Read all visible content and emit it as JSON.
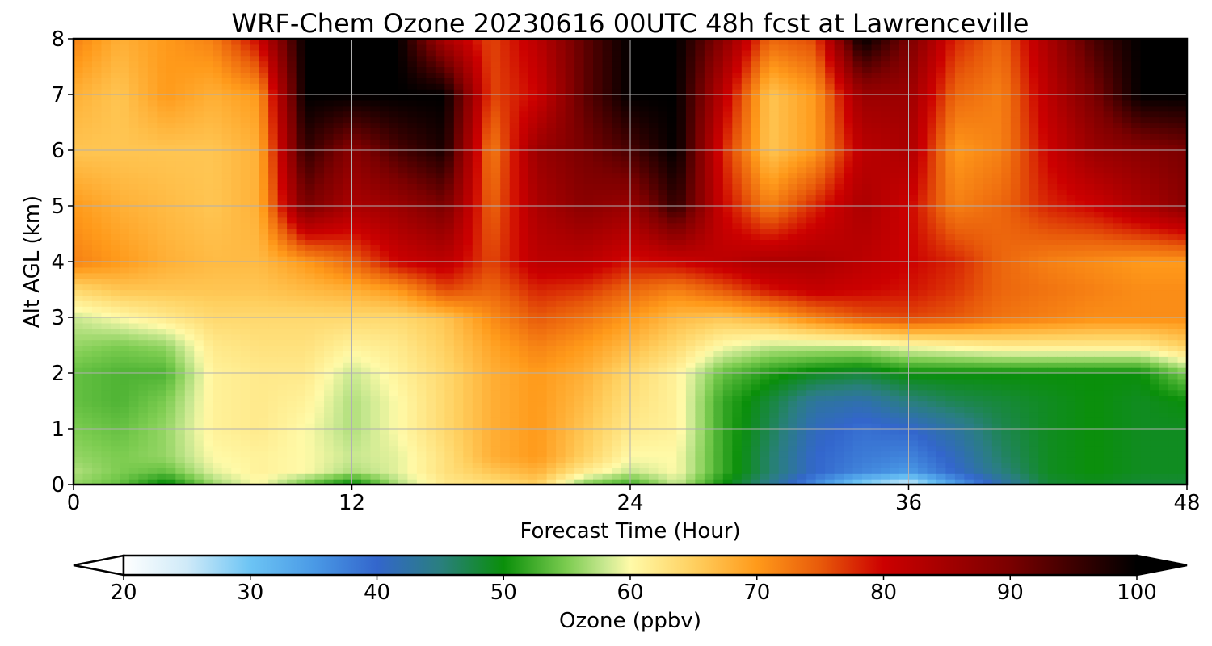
{
  "chart_data": {
    "type": "heatmap",
    "title": "WRF-Chem Ozone  20230616 00UTC 48h fcst at Lawrenceville",
    "xlabel": "Forecast Time (Hour)",
    "ylabel": "Alt AGL (km)",
    "xlim": [
      0,
      48
    ],
    "ylim": [
      0,
      8
    ],
    "xticks": [
      0,
      12,
      24,
      36,
      48
    ],
    "yticks": [
      0,
      1,
      2,
      3,
      4,
      5,
      6,
      7,
      8
    ],
    "grid": true,
    "colorbar": {
      "label": "Ozone  (ppbv)",
      "range": [
        20,
        100
      ],
      "ticks": [
        20,
        30,
        40,
        50,
        60,
        70,
        80,
        90,
        100
      ],
      "extend": "both",
      "orientation": "horizontal",
      "stops": [
        {
          "v": 20,
          "c": "#ffffff"
        },
        {
          "v": 25,
          "c": "#cfeaf8"
        },
        {
          "v": 30,
          "c": "#6cc4f4"
        },
        {
          "v": 35,
          "c": "#4a9ae6"
        },
        {
          "v": 40,
          "c": "#3366cc"
        },
        {
          "v": 45,
          "c": "#2a7f7f"
        },
        {
          "v": 50,
          "c": "#0a8f0a"
        },
        {
          "v": 55,
          "c": "#7ccc50"
        },
        {
          "v": 58,
          "c": "#c8e890"
        },
        {
          "v": 60,
          "c": "#fffaa8"
        },
        {
          "v": 65,
          "c": "#ffd060"
        },
        {
          "v": 70,
          "c": "#ff9a1a"
        },
        {
          "v": 75,
          "c": "#e85a0a"
        },
        {
          "v": 80,
          "c": "#cc0000"
        },
        {
          "v": 90,
          "c": "#7a0000"
        },
        {
          "v": 100,
          "c": "#000000"
        }
      ]
    },
    "x_hours": [
      0,
      2,
      4,
      6,
      8,
      10,
      12,
      14,
      16,
      18,
      20,
      22,
      24,
      26,
      28,
      30,
      32,
      34,
      36,
      38,
      40,
      42,
      44,
      46,
      48
    ],
    "z_km": [
      0,
      0.25,
      0.5,
      1,
      1.5,
      2,
      2.5,
      3,
      3.5,
      4,
      5,
      6,
      7,
      8
    ],
    "ozone_ppbv": [
      [
        56,
        54,
        49,
        56,
        60,
        54,
        49,
        57,
        62,
        63,
        65,
        55,
        52,
        58,
        50,
        44,
        36,
        28,
        24,
        34,
        42,
        48,
        49,
        48,
        48
      ],
      [
        57,
        55,
        54,
        59,
        61,
        60,
        57,
        59,
        63,
        66,
        68,
        62,
        58,
        60,
        52,
        46,
        40,
        37,
        35,
        40,
        45,
        49,
        50,
        49,
        49
      ],
      [
        56,
        55,
        56,
        60,
        61,
        60,
        58,
        59,
        63,
        68,
        70,
        65,
        60,
        60,
        52,
        46,
        40,
        38,
        37,
        41,
        46,
        49,
        50,
        49,
        49
      ],
      [
        55,
        54,
        56,
        61,
        62,
        60,
        57,
        60,
        64,
        68,
        70,
        66,
        62,
        61,
        52,
        47,
        41,
        39,
        40,
        43,
        47,
        49,
        50,
        49,
        49
      ],
      [
        54,
        53,
        55,
        61,
        62,
        61,
        57,
        60,
        64,
        68,
        70,
        67,
        63,
        61,
        52,
        48,
        43,
        42,
        45,
        47,
        48,
        49,
        50,
        49,
        50
      ],
      [
        54,
        53,
        53,
        61,
        62,
        62,
        58,
        61,
        64,
        68,
        70,
        68,
        64,
        61,
        54,
        51,
        49,
        48,
        50,
        50,
        50,
        50,
        50,
        50,
        55
      ],
      [
        56,
        55,
        56,
        62,
        63,
        63,
        61,
        62,
        65,
        69,
        72,
        70,
        67,
        64,
        60,
        58,
        58,
        58,
        60,
        61,
        62,
        62,
        62,
        62,
        65
      ],
      [
        58,
        60,
        62,
        64,
        64,
        64,
        64,
        64,
        66,
        71,
        75,
        73,
        70,
        67,
        66,
        68,
        72,
        75,
        76,
        75,
        73,
        72,
        71,
        71,
        71
      ],
      [
        64,
        66,
        66,
        66,
        66,
        67,
        68,
        70,
        76,
        74,
        78,
        77,
        74,
        72,
        75,
        79,
        81,
        80,
        79,
        77,
        74,
        73,
        72,
        71,
        71
      ],
      [
        72,
        70,
        68,
        67,
        67,
        70,
        74,
        80,
        82,
        76,
        82,
        82,
        79,
        80,
        82,
        84,
        84,
        82,
        80,
        78,
        74,
        72,
        71,
        70,
        70
      ],
      [
        70,
        68,
        67,
        66,
        68,
        90,
        84,
        86,
        90,
        74,
        84,
        88,
        86,
        96,
        80,
        72,
        78,
        84,
        80,
        72,
        74,
        78,
        80,
        84,
        88
      ],
      [
        66,
        66,
        66,
        66,
        68,
        96,
        88,
        94,
        98,
        72,
        86,
        90,
        94,
        100,
        78,
        66,
        70,
        82,
        84,
        70,
        72,
        80,
        86,
        88,
        90
      ],
      [
        68,
        66,
        70,
        68,
        70,
        100,
        100,
        100,
        100,
        76,
        80,
        92,
        100,
        100,
        82,
        66,
        70,
        86,
        86,
        74,
        72,
        82,
        90,
        100,
        100
      ],
      [
        72,
        68,
        70,
        72,
        80,
        100,
        100,
        100,
        84,
        76,
        82,
        92,
        100,
        100,
        88,
        74,
        76,
        100,
        90,
        78,
        74,
        84,
        94,
        100,
        100
      ]
    ]
  }
}
